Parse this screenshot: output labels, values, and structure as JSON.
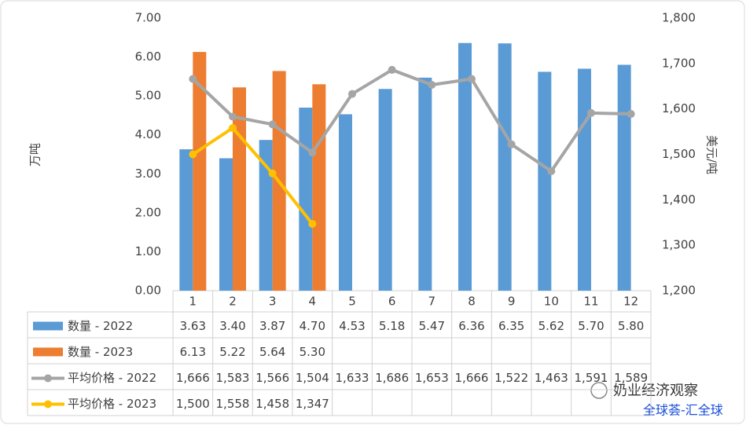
{
  "chart_data": {
    "type": "bar",
    "y_label": "万吨",
    "y2_label": "美元/吨",
    "categories": [
      "1",
      "2",
      "3",
      "4",
      "5",
      "6",
      "7",
      "8",
      "9",
      "10",
      "11",
      "12"
    ],
    "ylim": [
      0,
      7
    ],
    "yticks": [
      {
        "value": 0,
        "label": "0.00"
      },
      {
        "value": 1,
        "label": "1.00"
      },
      {
        "value": 2,
        "label": "2.00"
      },
      {
        "value": 3,
        "label": "3.00"
      },
      {
        "value": 4,
        "label": "4.00"
      },
      {
        "value": 5,
        "label": "5.00"
      },
      {
        "value": 6,
        "label": "6.00"
      },
      {
        "value": 7,
        "label": "7.00"
      }
    ],
    "y2lim": [
      1200,
      1800
    ],
    "y2ticks": [
      {
        "value": 1200,
        "label": "1,200"
      },
      {
        "value": 1300,
        "label": "1,300"
      },
      {
        "value": 1400,
        "label": "1,400"
      },
      {
        "value": 1500,
        "label": "1,500"
      },
      {
        "value": 1600,
        "label": "1,600"
      },
      {
        "value": 1700,
        "label": "1,700"
      },
      {
        "value": 1800,
        "label": "1,800"
      }
    ],
    "grid": false,
    "series": [
      {
        "name": "数量 - 2022",
        "type": "bar",
        "color": "#5b9bd5",
        "values": [
          3.63,
          3.4,
          3.87,
          4.7,
          4.53,
          5.18,
          5.47,
          6.36,
          6.35,
          5.62,
          5.7,
          5.8
        ],
        "value_labels": [
          "3.63",
          "3.40",
          "3.87",
          "4.70",
          "4.53",
          "5.18",
          "5.47",
          "6.36",
          "6.35",
          "5.62",
          "5.70",
          "5.80"
        ]
      },
      {
        "name": "数量 - 2023",
        "type": "bar",
        "color": "#ed7d31",
        "values": [
          6.13,
          5.22,
          5.64,
          5.3,
          null,
          null,
          null,
          null,
          null,
          null,
          null,
          null
        ],
        "value_labels": [
          "6.13",
          "5.22",
          "5.64",
          "5.30",
          null,
          null,
          null,
          null,
          null,
          null,
          null,
          null
        ]
      },
      {
        "name": "平均价格 - 2022",
        "type": "line",
        "axis": "y2",
        "color": "#a5a5a5",
        "values": [
          1666,
          1583,
          1566,
          1504,
          1633,
          1686,
          1653,
          1666,
          1522,
          1463,
          1591,
          1589
        ],
        "value_labels": [
          "1,666",
          "1,583",
          "1,566",
          "1,504",
          "1,633",
          "1,686",
          "1,653",
          "1,666",
          "1,522",
          "1,463",
          "1,591",
          "1,589"
        ]
      },
      {
        "name": "平均价格 - 2023",
        "type": "line",
        "axis": "y2",
        "color": "#ffc000",
        "values": [
          1500,
          1558,
          1458,
          1347,
          null,
          null,
          null,
          null,
          null,
          null,
          null,
          null
        ],
        "value_labels": [
          "1,500",
          "1,558",
          "1,458",
          "1,347",
          null,
          null,
          null,
          null,
          null,
          null,
          null,
          null
        ]
      }
    ],
    "watermark": [
      "奶业经济观察",
      "全球荟-汇全球"
    ]
  }
}
